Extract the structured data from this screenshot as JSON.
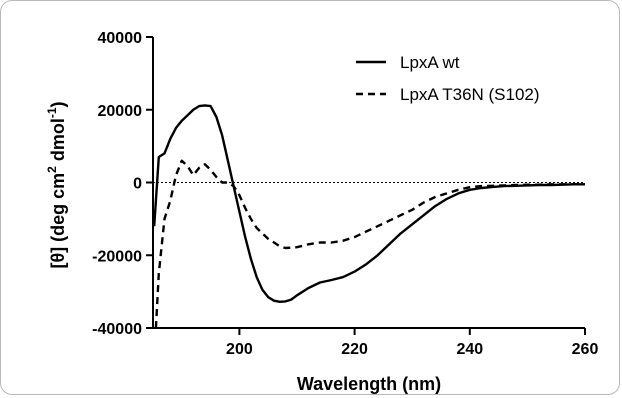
{
  "chart_data": {
    "type": "line",
    "title": "",
    "xlabel": "Wavelength (nm)",
    "ylabel": "[θ] (deg cm² dmol⁻¹)",
    "ylabel_parts": {
      "pre1": "[θ] (deg cm",
      "sup1": "2",
      "pre2": " dmol",
      "sup2": "-1",
      "post": ")"
    },
    "xlim": [
      185,
      260
    ],
    "ylim": [
      -40000,
      40000
    ],
    "xticks": [
      200,
      220,
      240,
      260
    ],
    "xtick_labels": [
      "200",
      "220",
      "240",
      "260"
    ],
    "yticks": [
      -40000,
      -20000,
      0,
      20000,
      40000
    ],
    "ytick_labels": [
      "-40000",
      "-20000",
      "0",
      "20000",
      "40000"
    ],
    "zero_line": true,
    "grid": false,
    "legend_position": "top-right",
    "series": [
      {
        "name": "LpxA wt",
        "style": "solid",
        "x": [
          185.2,
          185.5,
          186,
          187,
          188,
          189,
          190,
          191,
          192,
          193,
          194,
          195,
          196,
          197,
          198,
          199,
          200,
          201,
          202,
          203,
          204,
          205,
          206,
          207,
          208,
          209,
          210,
          212,
          214,
          216,
          218,
          220,
          222,
          224,
          226,
          228,
          230,
          232,
          234,
          236,
          238,
          240,
          242,
          244,
          246,
          248,
          250,
          252,
          254,
          256,
          258,
          260
        ],
        "y": [
          -12000,
          -5000,
          7000,
          8000,
          12000,
          15000,
          17000,
          18500,
          20000,
          21000,
          21200,
          21000,
          18000,
          13000,
          6000,
          -1000,
          -8000,
          -15000,
          -21000,
          -26000,
          -29500,
          -31500,
          -32500,
          -32800,
          -32700,
          -32200,
          -31000,
          -29000,
          -27500,
          -26800,
          -26000,
          -24500,
          -22500,
          -20000,
          -17000,
          -14000,
          -11500,
          -9000,
          -6500,
          -4500,
          -3000,
          -2000,
          -1500,
          -1200,
          -1000,
          -900,
          -800,
          -700,
          -700,
          -600,
          -500,
          -500
        ]
      },
      {
        "name": "LpxA T36N (S102)",
        "style": "dashed",
        "x": [
          185.5,
          186,
          187,
          188,
          189,
          190,
          191,
          192,
          193,
          194,
          195,
          196,
          197,
          198,
          199,
          200,
          201,
          202,
          203,
          204,
          205,
          206,
          207,
          208,
          210,
          212,
          214,
          216,
          218,
          220,
          222,
          224,
          226,
          228,
          230,
          232,
          234,
          236,
          238,
          240,
          242,
          244,
          246,
          248,
          250,
          252,
          254,
          256,
          258,
          260
        ],
        "y": [
          -40000,
          -25000,
          -10000,
          -5000,
          2000,
          6000,
          4500,
          2000,
          4000,
          5000,
          3500,
          1500,
          0,
          0,
          -1000,
          -3500,
          -7000,
          -10000,
          -12500,
          -14000,
          -15500,
          -16500,
          -17500,
          -18000,
          -17800,
          -17000,
          -16500,
          -16500,
          -16000,
          -15000,
          -13500,
          -12000,
          -10500,
          -9000,
          -7500,
          -5500,
          -4000,
          -3000,
          -2000,
          -1300,
          -1000,
          -900,
          -800,
          -700,
          -600,
          -600,
          -500,
          -500,
          -500,
          -500
        ]
      }
    ]
  }
}
